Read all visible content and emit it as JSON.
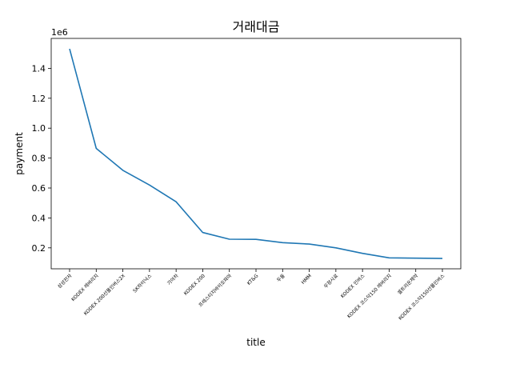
{
  "chart_data": {
    "type": "line",
    "title": "거래대금",
    "xlabel": "title",
    "ylabel": "payment",
    "y_offset_text": "1e6",
    "categories": [
      "삼성전자",
      "KODEX 레버리지",
      "KODEX 200선물인버스2X",
      "SK하이닉스",
      "기아차",
      "KODEX 200",
      "프레스티지바이오파마",
      "KT&G",
      "두올",
      "HMM",
      "우정시료",
      "KODEX 인버스",
      "KODEX 코스닥150 레버리지",
      "셀트리온제약",
      "KODEX 코스닥150선물인버스"
    ],
    "series": [
      {
        "values": [
          1530000,
          865000,
          718000,
          620000,
          508000,
          303000,
          258000,
          257000,
          235000,
          225000,
          200000,
          163000,
          133000,
          131000,
          129000
        ],
        "color": "#1f77b4"
      }
    ],
    "yticks": [
      0.2,
      0.4,
      0.6,
      0.8,
      1.0,
      1.2,
      1.4
    ],
    "ytick_labels": [
      "0.2",
      "0.4",
      "0.6",
      "0.8",
      "1.0",
      "1.2",
      "1.4"
    ],
    "ylim": [
      60000,
      1600000
    ],
    "grid": false,
    "legend": "none"
  }
}
